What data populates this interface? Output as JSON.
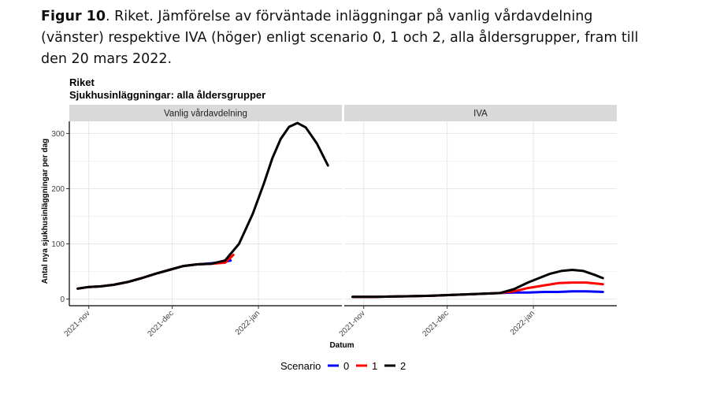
{
  "caption": {
    "label": "Figur 10",
    "text": ". Riket. Jämförelse av förväntade inläggningar på vanlig vårdavdelning (vänster) respektive IVA (höger) enligt scenario 0, 1 och 2, alla åldersgrupper, fram till den 20 mars 2022."
  },
  "chart_data": {
    "type": "line",
    "title": "Riket",
    "subtitle": "Sjukhusinläggningar: alla åldersgrupper",
    "xlabel": "Datum",
    "ylabel": "Antal nya sjukhusinläggningar per dag",
    "ylim": [
      -12,
      322
    ],
    "xlim": [
      "2021-10-25",
      "2022-01-31"
    ],
    "x_ticks": [
      "2021-nov",
      "2021-dec",
      "2022-jan"
    ],
    "y_ticks": [
      0,
      100,
      200,
      300
    ],
    "grid": true,
    "legend": {
      "title": "Scenario",
      "position": "bottom"
    },
    "colors": {
      "0": "#0000ff",
      "1": "#ff0000",
      "2": "#000000"
    },
    "panels": [
      {
        "name": "Vanlig vårdavdelning",
        "series": [
          {
            "name": "0",
            "x": [
              "2021-10-28",
              "2021-11-01",
              "2021-11-05",
              "2021-11-10",
              "2021-11-15",
              "2021-11-20",
              "2021-11-25",
              "2021-11-30",
              "2021-12-05",
              "2021-12-10",
              "2021-12-15",
              "2021-12-20",
              "2021-12-22"
            ],
            "y": [
              19,
              22,
              23,
              26,
              31,
              38,
              46,
              53,
              60,
              63,
              65,
              68,
              70
            ]
          },
          {
            "name": "1",
            "x": [
              "2021-10-28",
              "2021-11-01",
              "2021-11-05",
              "2021-11-10",
              "2021-11-15",
              "2021-11-20",
              "2021-11-25",
              "2021-11-30",
              "2021-12-05",
              "2021-12-10",
              "2021-12-15",
              "2021-12-20",
              "2021-12-23"
            ],
            "y": [
              19,
              22,
              23,
              26,
              31,
              38,
              46,
              53,
              60,
              63,
              64,
              66,
              80
            ]
          },
          {
            "name": "2",
            "x": [
              "2021-10-28",
              "2021-11-01",
              "2021-11-05",
              "2021-11-10",
              "2021-11-15",
              "2021-11-20",
              "2021-11-25",
              "2021-11-30",
              "2021-12-05",
              "2021-12-10",
              "2021-12-15",
              "2021-12-20",
              "2021-12-25",
              "2021-12-30",
              "2022-01-03",
              "2022-01-06",
              "2022-01-09",
              "2022-01-12",
              "2022-01-15",
              "2022-01-18",
              "2022-01-22",
              "2022-01-26"
            ],
            "y": [
              19,
              22,
              23,
              26,
              31,
              38,
              46,
              53,
              60,
              63,
              64,
              70,
              100,
              155,
              210,
              255,
              290,
              312,
              319,
              311,
              282,
              242
            ]
          }
        ]
      },
      {
        "name": "IVA",
        "series": [
          {
            "name": "0",
            "x": [
              "2021-10-28",
              "2021-11-05",
              "2021-11-15",
              "2021-11-25",
              "2021-12-05",
              "2021-12-15",
              "2021-12-20",
              "2021-12-25",
              "2021-12-30",
              "2022-01-05",
              "2022-01-10",
              "2022-01-15",
              "2022-01-20",
              "2022-01-26"
            ],
            "y": [
              4,
              4,
              5,
              6,
              8,
              10,
              11,
              12,
              12,
              13,
              13,
              14,
              14,
              13
            ]
          },
          {
            "name": "1",
            "x": [
              "2021-10-28",
              "2021-11-05",
              "2021-11-15",
              "2021-11-25",
              "2021-12-05",
              "2021-12-15",
              "2021-12-20",
              "2021-12-25",
              "2021-12-30",
              "2022-01-05",
              "2022-01-10",
              "2022-01-15",
              "2022-01-20",
              "2022-01-26"
            ],
            "y": [
              4,
              4,
              5,
              6,
              8,
              10,
              11,
              14,
              20,
              25,
              29,
              30,
              30,
              27
            ]
          },
          {
            "name": "2",
            "x": [
              "2021-10-28",
              "2021-11-05",
              "2021-11-15",
              "2021-11-25",
              "2021-12-05",
              "2021-12-15",
              "2021-12-20",
              "2021-12-25",
              "2021-12-30",
              "2022-01-03",
              "2022-01-07",
              "2022-01-11",
              "2022-01-15",
              "2022-01-19",
              "2022-01-23",
              "2022-01-26"
            ],
            "y": [
              4,
              4,
              5,
              6,
              8,
              10,
              11,
              18,
              30,
              38,
              46,
              51,
              53,
              51,
              44,
              38
            ]
          }
        ]
      }
    ]
  }
}
